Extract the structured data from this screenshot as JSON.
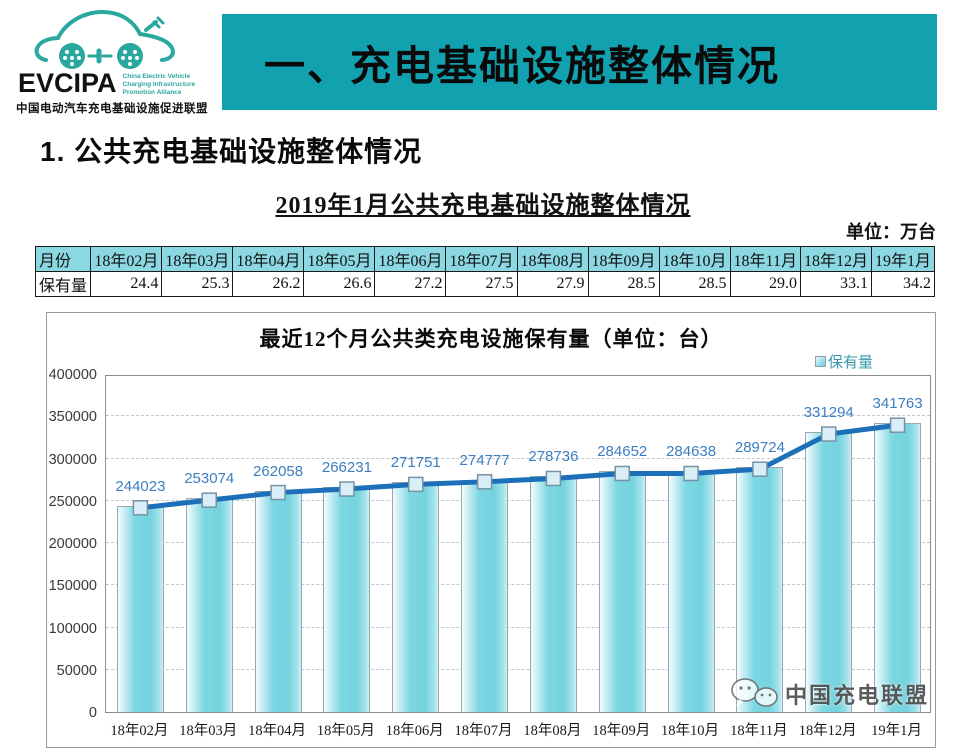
{
  "header": {
    "logo": {
      "brand": "EVCIPA",
      "subtext_lines": [
        "China Electric Vehicle",
        "Charging Infrastructure",
        "Promotion Alliance"
      ],
      "caption": "中国电动汽车充电基础设施促进联盟",
      "accent_color": "#2aa79f"
    },
    "banner": {
      "title": "一、充电基础设施整体情况",
      "bg_color": "#12a1af"
    }
  },
  "section": {
    "heading": "1. 公共充电基础设施整体情况",
    "subtitle": "2019年1月公共充电基础设施整体情况",
    "unit_label": "单位：万台"
  },
  "table": {
    "row_header": "月份",
    "value_header": "保有量",
    "header_bg": "#8bd8e2",
    "months": [
      "18年02月",
      "18年03月",
      "18年04月",
      "18年05月",
      "18年06月",
      "18年07月",
      "18年08月",
      "18年09月",
      "18年10月",
      "18年11月",
      "18年12月",
      "19年1月"
    ],
    "values": [
      "24.4",
      "25.3",
      "26.2",
      "26.6",
      "27.2",
      "27.5",
      "27.9",
      "28.5",
      "28.5",
      "29.0",
      "33.1",
      "34.2"
    ]
  },
  "chart_data": {
    "type": "bar",
    "title": "最近12个月公共类充电设施保有量（单位：台）",
    "legend": "保有量",
    "legend_position": "top-right",
    "categories": [
      "18年02月",
      "18年03月",
      "18年04月",
      "18年05月",
      "18年06月",
      "18年07月",
      "18年08月",
      "18年09月",
      "18年10月",
      "18年11月",
      "18年12月",
      "19年1月"
    ],
    "values": [
      244023,
      253074,
      262058,
      266231,
      271751,
      274777,
      278736,
      284652,
      284638,
      289724,
      331294,
      341763
    ],
    "ylim": [
      0,
      400000
    ],
    "ytick_step": 50000,
    "grid": true,
    "bar_color": "#7cd7e2",
    "line_color": "#1c6fb8",
    "label_color": "#3c7ebf",
    "overlay_line": true
  },
  "watermark": {
    "text": "中国充电联盟",
    "icon": "wechat-bubbles-icon"
  }
}
